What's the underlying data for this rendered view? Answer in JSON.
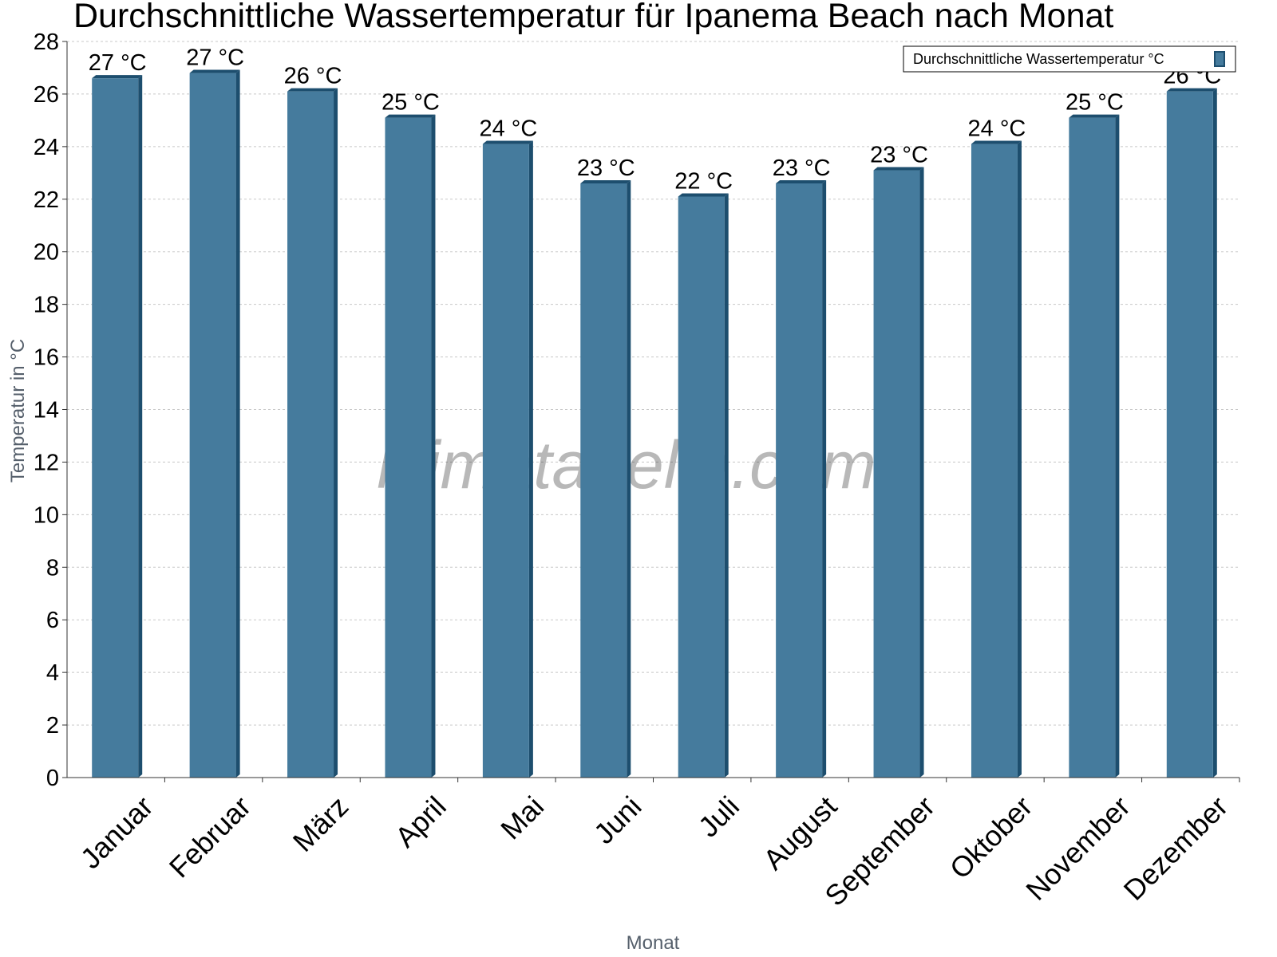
{
  "chart_data": {
    "type": "bar",
    "title": "Durchschnittliche Wassertemperatur für Ipanema Beach nach Monat",
    "xlabel": "Monat",
    "ylabel": "Temperatur in °C",
    "ylim": [
      0,
      28
    ],
    "yticks": [
      0,
      2,
      4,
      6,
      8,
      10,
      12,
      14,
      16,
      18,
      20,
      22,
      24,
      26,
      28
    ],
    "grid": true,
    "legend_position": "top-right",
    "categories": [
      "Januar",
      "Februar",
      "März",
      "April",
      "Mai",
      "Juni",
      "Juli",
      "August",
      "September",
      "Oktober",
      "November",
      "Dezember"
    ],
    "series": [
      {
        "name": "Durchschnittliche Wassertemperatur °C",
        "color": "#457b9d",
        "values": [
          26.6,
          26.8,
          26.1,
          25.1,
          24.1,
          22.6,
          22.1,
          22.6,
          23.1,
          24.1,
          25.1,
          26.1
        ],
        "labels": [
          "27 °C",
          "27 °C",
          "26 °C",
          "25 °C",
          "24 °C",
          "23 °C",
          "22 °C",
          "23 °C",
          "23 °C",
          "24 °C",
          "25 °C",
          "26 °C"
        ]
      }
    ],
    "watermark": "klimatabelle.com"
  }
}
